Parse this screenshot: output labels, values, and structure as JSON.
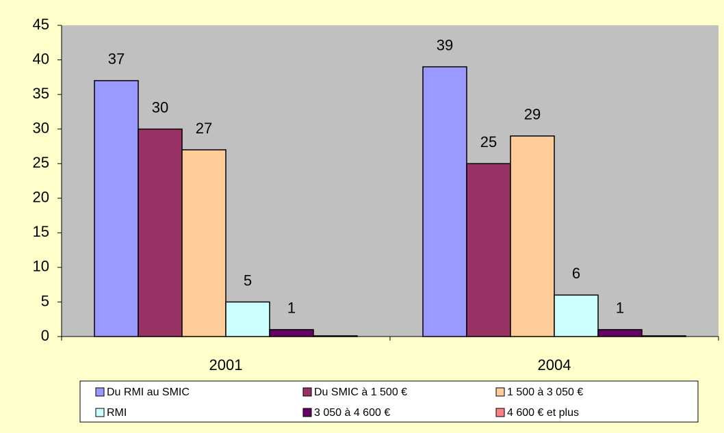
{
  "chart_data": {
    "type": "bar",
    "categories": [
      "2001",
      "2004"
    ],
    "series": [
      {
        "name": "Du RMI au SMIC",
        "color": "#9999ff",
        "values": [
          37,
          39
        ]
      },
      {
        "name": "Du SMIC à 1 500 €",
        "color": "#993366",
        "values": [
          30,
          25
        ]
      },
      {
        "name": "1 500 à 3 050 €",
        "color": "#ffcc99",
        "values": [
          27,
          29
        ]
      },
      {
        "name": " RMI",
        "color": "#ccffff",
        "values": [
          5,
          6
        ]
      },
      {
        "name": "3 050  à 4 600 €",
        "color": "#660066",
        "values": [
          1,
          1
        ]
      },
      {
        "name": "4 600 € et plus",
        "color": "#ff8080",
        "values": [
          0.1,
          0.1
        ],
        "data_labels": false
      }
    ],
    "ylim": [
      0,
      45
    ],
    "yticks": [
      0,
      5,
      10,
      15,
      20,
      25,
      30,
      35,
      40,
      45
    ],
    "grid": false,
    "legend": "bottom"
  }
}
